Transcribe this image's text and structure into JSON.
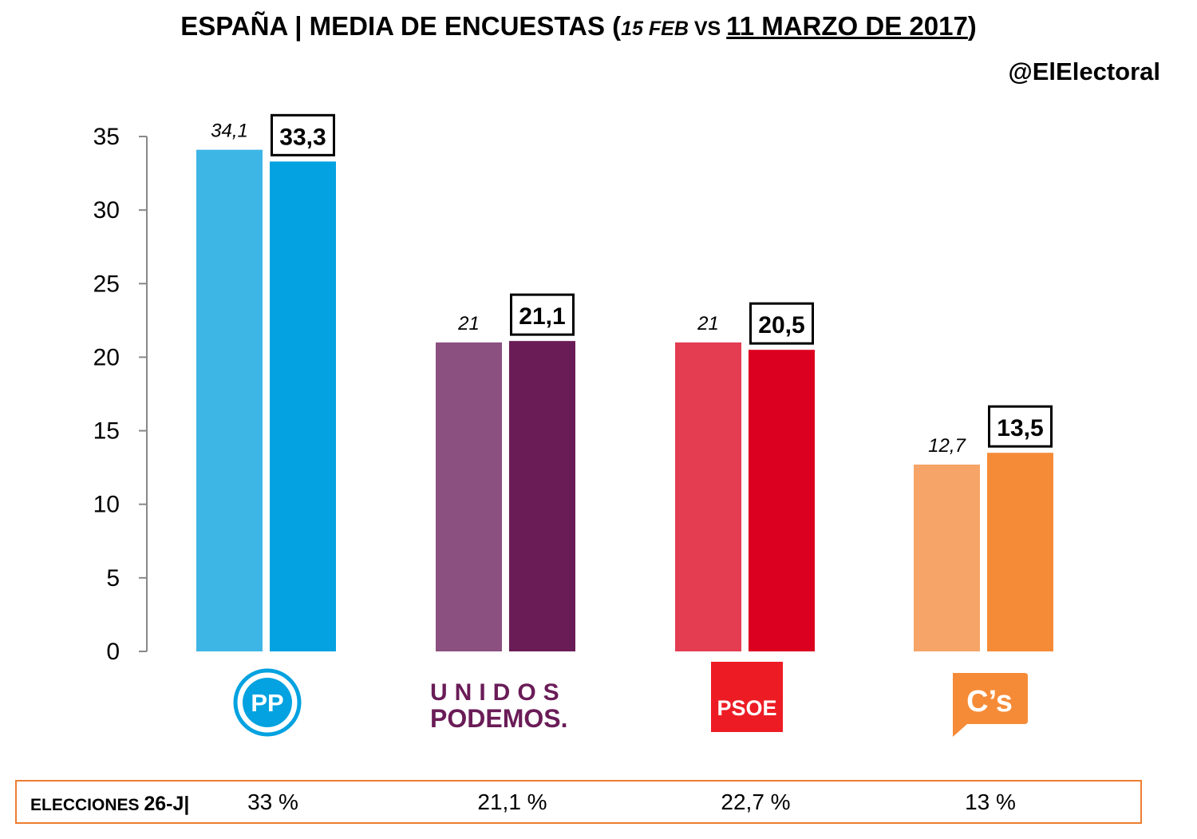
{
  "header": {
    "title_main": "ESPAÑA | MEDIA DE ENCUESTAS (",
    "title_date1": "15 FEB",
    "title_vs": " VS ",
    "title_date2": "11 MARZO DE 2017",
    "title_close": ")",
    "handle": "@ElElectoral"
  },
  "chart_data": {
    "type": "bar",
    "categories": [
      "PP",
      "UNIDOS PODEMOS",
      "PSOE",
      "C's"
    ],
    "series": [
      {
        "name": "15 FEB",
        "values": [
          34.1,
          21,
          21,
          12.7
        ],
        "labels": [
          "34,1",
          "21",
          "21",
          "12,7"
        ]
      },
      {
        "name": "11 MARZO DE 2017",
        "values": [
          33.3,
          21.1,
          20.5,
          13.5
        ],
        "labels": [
          "33,3",
          "21,1",
          "20,5",
          "13,5"
        ]
      }
    ],
    "colors": {
      "series1": [
        "#3DB6E6",
        "#8B5080",
        "#E43D52",
        "#F6A467"
      ],
      "series2": [
        "#04A2E0",
        "#6A1C57",
        "#DC0020",
        "#F68B37"
      ]
    },
    "ylim": [
      0,
      35
    ],
    "yticks": [
      0,
      5,
      10,
      15,
      20,
      25,
      30,
      35
    ],
    "grid": false
  },
  "logos": {
    "pp": "PP",
    "podemos_line1": "UNIDOS",
    "podemos_line2": "PODEMOS.",
    "psoe": "PSOE",
    "cs": "C’s"
  },
  "footer": {
    "label": "ELECCIONES ",
    "label_bold": "26-J",
    "label_sep": "|",
    "results": [
      "33 %",
      "21,1 %",
      "22,7 %",
      "13 %"
    ]
  }
}
